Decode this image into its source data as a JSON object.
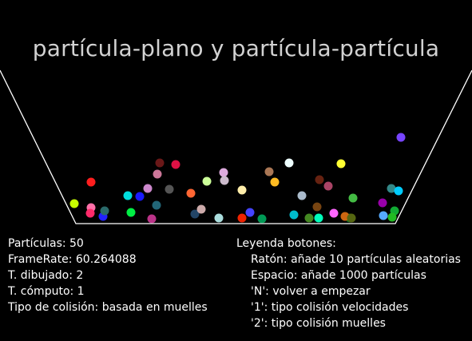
{
  "title": "partícula-plano y partícula-partícula",
  "stats": {
    "particles": "Partículas: 50",
    "framerate": "FrameRate: 60.264088",
    "draw_time": "T. dibujado: 2",
    "compute_time": "T. cómputo: 1",
    "collision_type": "Tipo de colisión: basada en muelles"
  },
  "legend": {
    "heading": "Leyenda botones:",
    "items": [
      "Ratón: añade 10 partículas aleatorias",
      "Espacio: añade 1000 partículas",
      "'N': volver a empezar",
      "'1': tipo colisión velocidades",
      "'2': tipo colisión muelles"
    ]
  },
  "colors": {
    "background": "#000000",
    "container_line": "#ffffff",
    "title": "#d2d2d2"
  },
  "particle_colors": [
    "#c8ff00",
    "#ff1e1e",
    "#ff6fa8",
    "#ff2a6a",
    "#2222ff",
    "#2a6a6a",
    "#00dddd",
    "#1a1aff",
    "#00ee44",
    "#cc88cc",
    "#bb3388",
    "#6a1818",
    "#cc7799",
    "#dd1144",
    "#555555",
    "#226677",
    "#ff6633",
    "#224466",
    "#ccaaaa",
    "#ccff99",
    "#aadddd",
    "#ddaadd",
    "#ccbbcc",
    "#ee2200",
    "#4444ff",
    "#ffeeaa",
    "#009955",
    "#aa7755",
    "#ffbb22",
    "#eeffff",
    "#00bbcc",
    "#aabbcc",
    "#662211",
    "#774411",
    "#448822",
    "#00ffbb",
    "#ffff33",
    "#aa4466",
    "#ff66ff",
    "#117722",
    "#44bb44",
    "#cc6611",
    "#556611",
    "#9900aa",
    "#338888",
    "#00ccff",
    "#55aaff",
    "#11aa33",
    "#22bb22",
    "#7744ff"
  ]
}
